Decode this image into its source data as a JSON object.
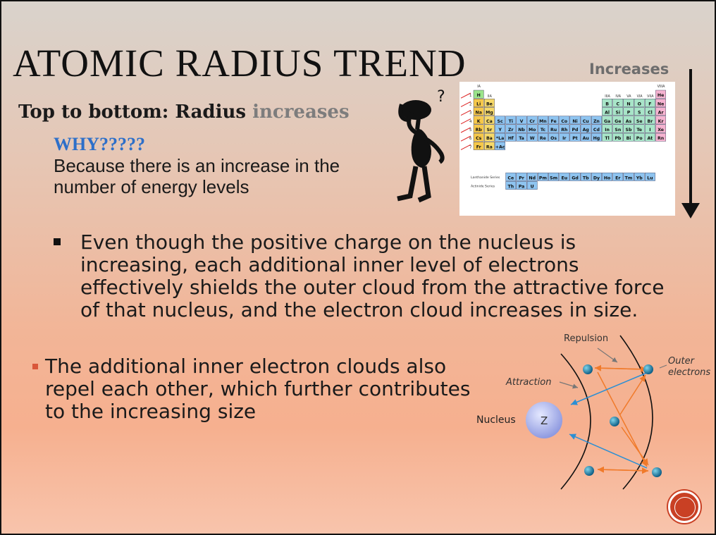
{
  "slide": {
    "title": "ATOMIC RADIUS TREND",
    "increases_label": "Increases",
    "subhead_prefix": "Top to bottom: Radius ",
    "subhead_highlight": "increases",
    "why": "WHY?????",
    "because": "Because there is an increase in the number of energy levels",
    "bullet1": "Even though the positive charge on the nucleus is increasing, each additional inner level of electrons effectively shields the outer cloud from the attractive force of that nucleus, and the electron cloud increases in size.",
    "bullet2": "The additional inner electron clouds also repel each other, which further contributes to the increasing size"
  },
  "diagram": {
    "repulsion": "Repulsion",
    "outer_electrons_line1": "Outer",
    "outer_electrons_line2": "electrons",
    "attraction": "Attraction",
    "nucleus": "Nucleus",
    "z": "Z"
  },
  "periodic_table": {
    "group_labels": [
      "IA",
      "IIA",
      "IIIA",
      "IVA",
      "VA",
      "VIA",
      "VIIA",
      "VIIIA"
    ],
    "row_labels": [
      "1",
      "2",
      "3",
      "4",
      "5",
      "6",
      "7"
    ],
    "series_labels": [
      "Lanthanide Series",
      "Actinide Series"
    ],
    "elements": {
      "r1": [
        "H",
        "He"
      ],
      "r2": [
        "Li",
        "Be",
        "B",
        "C",
        "N",
        "O",
        "F",
        "Ne"
      ],
      "r3": [
        "Na",
        "Mg",
        "Al",
        "Si",
        "P",
        "S",
        "Cl",
        "Ar"
      ],
      "r4": [
        "K",
        "Ca",
        "Sc",
        "Ti",
        "V",
        "Cr",
        "Mn",
        "Fe",
        "Co",
        "Ni",
        "Cu",
        "Zn",
        "Ga",
        "Ge",
        "As",
        "Se",
        "Br",
        "Kr"
      ],
      "r5": [
        "Rb",
        "Sr",
        "Y",
        "Zr",
        "Nb",
        "Mo",
        "Tc",
        "Ru",
        "Rh",
        "Pd",
        "Ag",
        "Cd",
        "In",
        "Sn",
        "Sb",
        "Te",
        "I",
        "Xe"
      ],
      "r6": [
        "Cs",
        "Ba",
        "*La",
        "Hf",
        "Ta",
        "W",
        "Re",
        "Os",
        "Ir",
        "Pt",
        "Au",
        "Hg",
        "Tl",
        "Pb",
        "Bi",
        "Po",
        "At",
        "Rn"
      ],
      "r7": [
        "Fr",
        "Ra",
        "+Ac"
      ],
      "lanthanides": [
        "Ce",
        "Pr",
        "Nd",
        "Pm",
        "Sm",
        "Eu",
        "Gd",
        "Tb",
        "Dy",
        "Ho",
        "Er",
        "Tm",
        "Yb",
        "Lu"
      ],
      "actinides": [
        "Th",
        "Pa",
        "U"
      ]
    }
  },
  "colors": {
    "why": "#2d6fc9",
    "increases": "#7d7d7d",
    "nav": "#c94024"
  }
}
